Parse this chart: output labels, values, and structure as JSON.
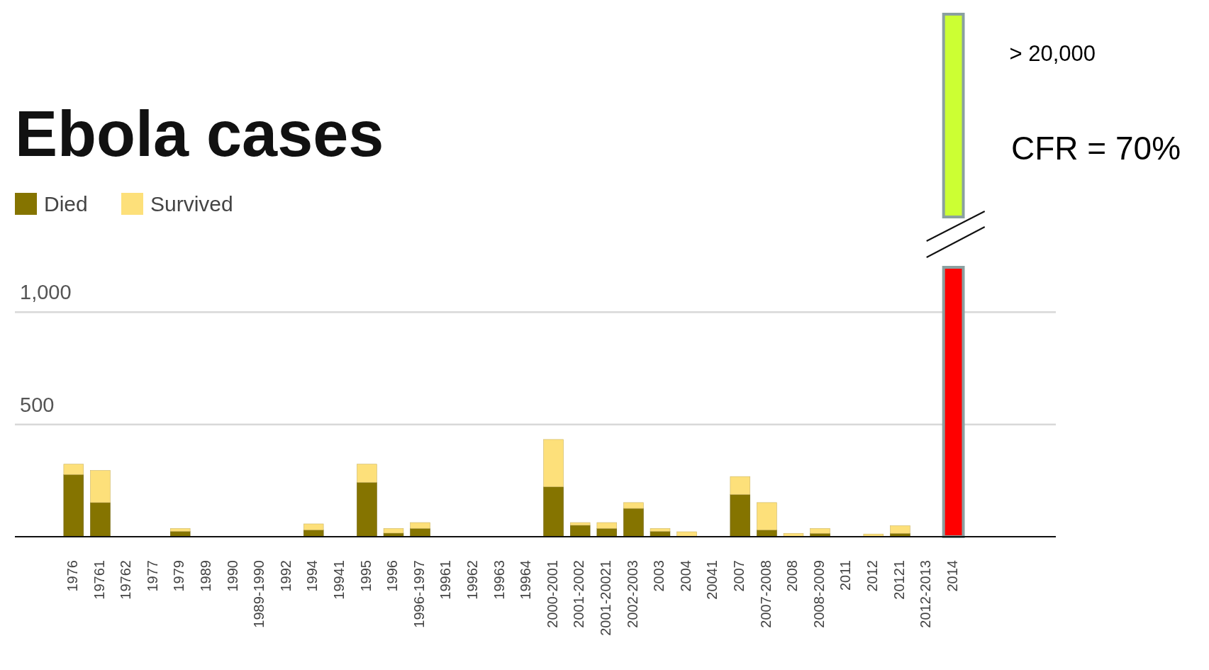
{
  "chart_data": {
    "type": "bar",
    "title": "Ebola cases",
    "stacked": true,
    "legend": "top left",
    "grid": "y",
    "categories": [
      "1976",
      "19761",
      "19762",
      "1977",
      "1979",
      "1989",
      "1990",
      "1989-1990",
      "1992",
      "1994",
      "19941",
      "1995",
      "1996",
      "1996-1997",
      "19961",
      "19962",
      "19963",
      "19964",
      "2000-2001",
      "2001-2002",
      "2001-20021",
      "2002-2003",
      "2003",
      "2004",
      "20041",
      "2007",
      "2007-2008",
      "2008",
      "2008-2009",
      "2011",
      "2012",
      "20121",
      "2012-2013",
      "2014"
    ],
    "series": [
      {
        "name": "Died",
        "color": "#857400",
        "values": [
          277,
          152,
          0,
          0,
          24,
          0,
          0,
          0,
          0,
          30,
          0,
          242,
          16,
          37,
          0,
          0,
          0,
          0,
          222,
          51,
          37,
          126,
          24,
          0,
          0,
          188,
          30,
          0,
          15,
          0,
          0,
          15,
          0,
          null
        ]
      },
      {
        "name": "Survived",
        "color": "#fde07a",
        "values": [
          46,
          143,
          0,
          0,
          13,
          0,
          0,
          0,
          0,
          27,
          0,
          81,
          21,
          26,
          0,
          0,
          0,
          0,
          211,
          12,
          26,
          26,
          13,
          22,
          0,
          80,
          122,
          15,
          22,
          0,
          12,
          34,
          0,
          null
        ]
      },
      {
        "color": "#ff0000",
        "values": [
          null,
          null,
          null,
          null,
          null,
          null,
          null,
          null,
          null,
          null,
          null,
          null,
          null,
          null,
          null,
          null,
          null,
          null,
          null,
          null,
          null,
          null,
          null,
          null,
          null,
          null,
          null,
          null,
          null,
          null,
          null,
          null,
          null,
          1200
        ]
      }
    ],
    "ylim": [
      0,
      1200
    ],
    "yticks": [
      500,
      {
        "value": 1000,
        "label": "1,000"
      }
    ],
    "annotations": [
      "> 20,000",
      "CFR = 70%"
    ]
  }
}
